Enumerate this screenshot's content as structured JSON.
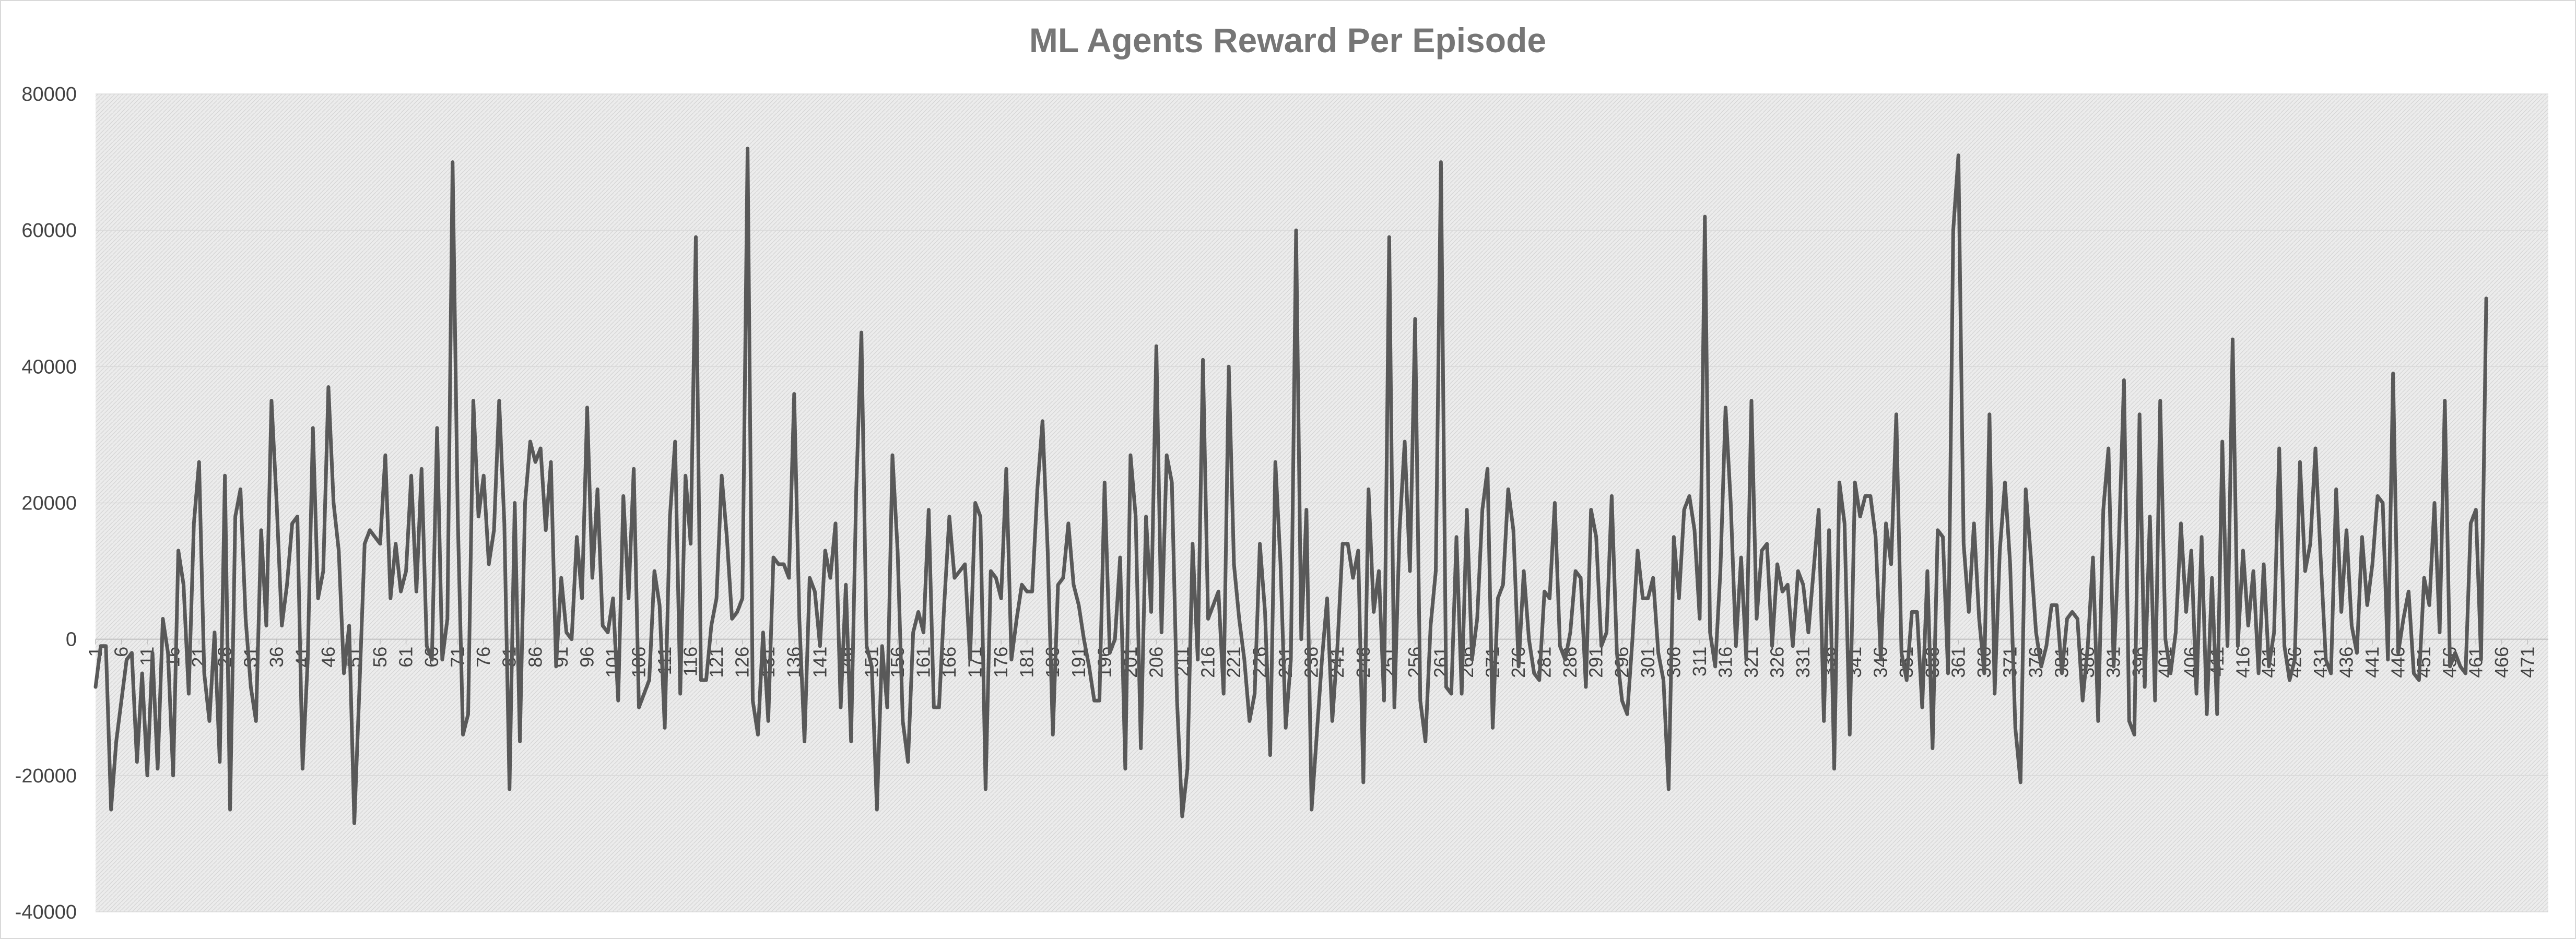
{
  "chart_data": {
    "type": "line",
    "title": "ML Agents Reward Per Episode",
    "xlabel": "",
    "ylabel": "",
    "ylim": [
      -40000,
      80000
    ],
    "yticks": [
      -40000,
      -20000,
      0,
      20000,
      40000,
      60000,
      80000
    ],
    "ytick_labels": [
      "-40000",
      "-20000",
      "0",
      "20000",
      "40000",
      "60000",
      "80000"
    ],
    "xlim": [
      1,
      475
    ],
    "xtick_labels": [
      "1",
      "6",
      "11",
      "16",
      "21",
      "26",
      "31",
      "36",
      "41",
      "46",
      "51",
      "56",
      "61",
      "66",
      "71",
      "76",
      "81",
      "86",
      "91",
      "96",
      "101",
      "106",
      "111",
      "116",
      "121",
      "126",
      "131",
      "136",
      "141",
      "146",
      "151",
      "156",
      "161",
      "166",
      "171",
      "176",
      "181",
      "186",
      "191",
      "196",
      "201",
      "206",
      "211",
      "216",
      "221",
      "226",
      "231",
      "236",
      "241",
      "246",
      "251",
      "256",
      "261",
      "266",
      "271",
      "276",
      "281",
      "286",
      "291",
      "296",
      "301",
      "306",
      "311",
      "316",
      "321",
      "326",
      "331",
      "336",
      "341",
      "346",
      "351",
      "356",
      "361",
      "366",
      "371",
      "376",
      "381",
      "386",
      "391",
      "396",
      "401",
      "406",
      "411",
      "416",
      "421",
      "426",
      "431",
      "436",
      "441",
      "446",
      "451",
      "456",
      "461",
      "466",
      "471"
    ],
    "grid": true,
    "legend": "none",
    "line_color": "#595959",
    "plot_background": "#ebebeb",
    "series": [
      {
        "x_start": 1,
        "values": [
          -7000,
          -1000,
          -1000,
          -25000,
          -15000,
          -9000,
          -3000,
          -2000,
          -18000,
          -5000,
          -20000,
          -2000,
          -19000,
          3000,
          -2000,
          -20000,
          13000,
          8000,
          -8000,
          17000,
          26000,
          -5000,
          -12000,
          1000,
          -18000,
          24000,
          -25000,
          18000,
          22000,
          3000,
          -7000,
          -12000,
          16000,
          2000,
          35000,
          20000,
          2000,
          8000,
          17000,
          18000,
          -19000,
          -3000,
          31000,
          6000,
          10000,
          37000,
          20000,
          13000,
          -5000,
          2000,
          -27000,
          -7000,
          14000,
          16000,
          15000,
          14000,
          27000,
          6000,
          14000,
          7000,
          10000,
          24000,
          7000,
          25000,
          -1000,
          -3000,
          31000,
          -3000,
          3000,
          70000,
          18000,
          -14000,
          -11000,
          35000,
          18000,
          24000,
          11000,
          16000,
          35000,
          17000,
          -22000,
          20000,
          -15000,
          20000,
          29000,
          26000,
          28000,
          16000,
          26000,
          -4000,
          9000,
          1000,
          0,
          15000,
          6000,
          34000,
          9000,
          22000,
          2000,
          1000,
          6000,
          -9000,
          21000,
          6000,
          25000,
          -10000,
          -8000,
          -6000,
          10000,
          5000,
          -13000,
          18000,
          29000,
          -8000,
          24000,
          14000,
          59000,
          -6000,
          -6000,
          2000,
          6000,
          24000,
          15000,
          3000,
          4000,
          6000,
          72000,
          -9000,
          -14000,
          1000,
          -12000,
          12000,
          11000,
          11000,
          9000,
          36000,
          3000,
          -15000,
          9000,
          7000,
          -1000,
          13000,
          9000,
          17000,
          -10000,
          8000,
          -15000,
          22000,
          45000,
          -1000,
          -4000,
          -25000,
          -1000,
          -10000,
          27000,
          13000,
          -12000,
          -18000,
          1000,
          4000,
          1000,
          19000,
          -10000,
          -10000,
          5000,
          18000,
          9000,
          10000,
          11000,
          -3000,
          20000,
          18000,
          -22000,
          10000,
          9000,
          6000,
          25000,
          -3000,
          3000,
          8000,
          7000,
          7000,
          22000,
          32000,
          13000,
          -14000,
          8000,
          9000,
          17000,
          8000,
          5000,
          0,
          -4000,
          -9000,
          -9000,
          23000,
          -2000,
          0,
          12000,
          -19000,
          27000,
          18000,
          -16000,
          18000,
          4000,
          43000,
          1000,
          27000,
          23000,
          -9000,
          -26000,
          -19000,
          14000,
          -3000,
          41000,
          3000,
          5000,
          7000,
          -8000,
          40000,
          11000,
          3000,
          -3000,
          -12000,
          -8000,
          14000,
          4000,
          -17000,
          26000,
          11000,
          -13000,
          -3000,
          60000,
          0,
          19000,
          -25000,
          -14000,
          -3000,
          6000,
          -12000,
          -1000,
          14000,
          14000,
          9000,
          13000,
          -21000,
          22000,
          4000,
          10000,
          -9000,
          59000,
          -10000,
          16000,
          29000,
          10000,
          47000,
          -9000,
          -15000,
          2000,
          10000,
          70000,
          -7000,
          -8000,
          15000,
          -8000,
          19000,
          -3000,
          3000,
          19000,
          25000,
          -13000,
          6000,
          8000,
          22000,
          16000,
          -4000,
          10000,
          0,
          -5000,
          -6000,
          7000,
          6000,
          20000,
          -1000,
          -3000,
          1000,
          10000,
          9000,
          -7000,
          19000,
          15000,
          -1000,
          1000,
          21000,
          -2000,
          -9000,
          -11000,
          0,
          13000,
          6000,
          6000,
          9000,
          -2000,
          -6000,
          -22000,
          15000,
          6000,
          19000,
          21000,
          16000,
          3000,
          62000,
          1000,
          -4000,
          10000,
          34000,
          20000,
          -1000,
          12000,
          -3000,
          35000,
          3000,
          13000,
          14000,
          -1000,
          11000,
          7000,
          8000,
          -1000,
          10000,
          8000,
          1000,
          10000,
          19000,
          -12000,
          16000,
          -19000,
          23000,
          17000,
          -14000,
          23000,
          18000,
          21000,
          21000,
          15000,
          -3000,
          17000,
          11000,
          33000,
          -2000,
          -6000,
          4000,
          4000,
          -10000,
          10000,
          -16000,
          16000,
          15000,
          -5000,
          60000,
          71000,
          14000,
          4000,
          17000,
          3000,
          -5000,
          33000,
          -8000,
          13000,
          23000,
          11000,
          -13000,
          -21000,
          22000,
          12000,
          1000,
          -4000,
          -1000,
          5000,
          5000,
          -5000,
          3000,
          4000,
          3000,
          -9000,
          -1000,
          12000,
          -12000,
          19000,
          28000,
          -4000,
          14000,
          38000,
          -12000,
          -14000,
          33000,
          -7000,
          18000,
          -9000,
          35000,
          0,
          -5000,
          1000,
          17000,
          4000,
          13000,
          -8000,
          15000,
          -11000,
          9000,
          -11000,
          29000,
          -1000,
          44000,
          -1000,
          13000,
          2000,
          10000,
          -5000,
          11000,
          -4000,
          1000,
          28000,
          -1000,
          -6000,
          -3000,
          26000,
          10000,
          14000,
          28000,
          12000,
          -3000,
          -5000,
          22000,
          4000,
          16000,
          2000,
          -2000,
          15000,
          5000,
          11000,
          21000,
          20000,
          -3000,
          39000,
          -2000,
          3000,
          7000,
          -5000,
          -6000,
          9000,
          5000,
          20000,
          1000,
          35000,
          -4000,
          -2000,
          -4000,
          -5000,
          17000,
          19000,
          -3000,
          50000
        ]
      }
    ]
  }
}
